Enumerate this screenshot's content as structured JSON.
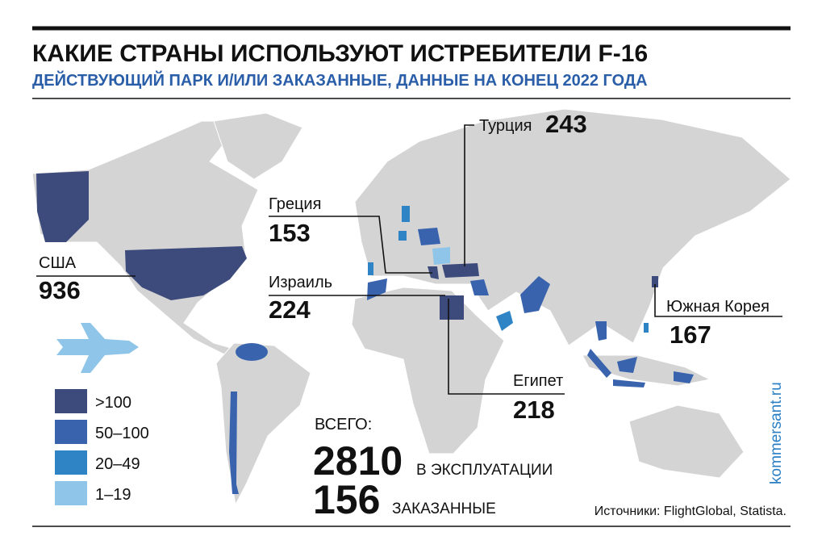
{
  "header": {
    "title": "КАКИЕ СТРАНЫ ИСПОЛЬЗУЮТ ИСТРЕБИТЕЛИ F-16",
    "subtitle": "ДЕЙСТВУЮЩИЙ ПАРК И/ИЛИ ЗАКАЗАННЫЕ, ДАННЫЕ НА КОНЕЦ 2022 ГОДА"
  },
  "callouts": [
    {
      "country": "США",
      "count": "936"
    },
    {
      "country": "Греция",
      "count": "153"
    },
    {
      "country": "Израиль",
      "count": "224"
    },
    {
      "country": "Турция",
      "count": "243"
    },
    {
      "country": "Южная Корея",
      "count": "167"
    },
    {
      "country": "Египет",
      "count": "218"
    }
  ],
  "legend": [
    {
      "label": ">100",
      "color": "#3d4a7c"
    },
    {
      "label": "50–100",
      "color": "#3a63ad"
    },
    {
      "label": "20–49",
      "color": "#2f84c6"
    },
    {
      "label": "1–19",
      "color": "#8ec5e8"
    }
  ],
  "totals": {
    "heading": "ВСЕГО:",
    "in_service": "2810",
    "in_service_label": "В ЭКСПЛУАТАЦИИ",
    "ordered": "156",
    "ordered_label": "ЗАКАЗАННЫЕ"
  },
  "source": "Источники: FlightGlobal, Statista.",
  "watermark": "kommersant.ru"
}
